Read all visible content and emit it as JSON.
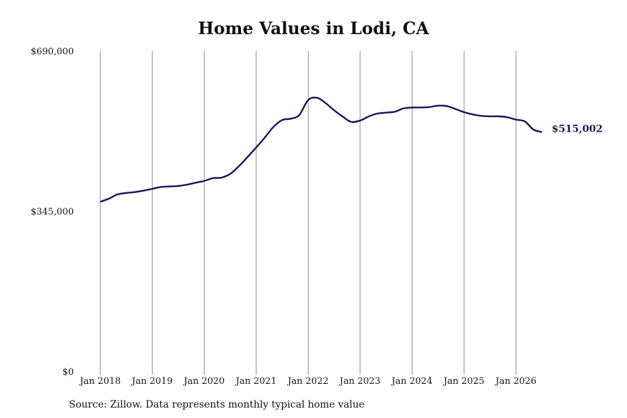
{
  "chart_data": {
    "type": "line",
    "title": "Home Values in Lodi, CA",
    "xlabel": "",
    "ylabel": "",
    "ylim": [
      0,
      690000
    ],
    "y_ticks": [
      {
        "value": 0,
        "label": "$0"
      },
      {
        "value": 345000,
        "label": "$345,000"
      },
      {
        "value": 690000,
        "label": "$690,000"
      }
    ],
    "x_ticks": [
      {
        "value": 2018.0,
        "label": "Jan 2018"
      },
      {
        "value": 2019.0,
        "label": "Jan 2019"
      },
      {
        "value": 2020.0,
        "label": "Jan 2020"
      },
      {
        "value": 2021.0,
        "label": "Jan 2021"
      },
      {
        "value": 2022.0,
        "label": "Jan 2022"
      },
      {
        "value": 2023.0,
        "label": "Jan 2023"
      },
      {
        "value": 2024.0,
        "label": "Jan 2024"
      },
      {
        "value": 2025.0,
        "label": "Jan 2025"
      },
      {
        "value": 2026.0,
        "label": "Jan 2026"
      }
    ],
    "xlim": [
      2018.0,
      2026.5
    ],
    "grid": "vertical",
    "line_color": "#14145a",
    "end_label": "$515,002",
    "series": [
      {
        "x": [
          2018.0,
          2018.17,
          2018.33,
          2018.5,
          2018.67,
          2018.83,
          2019.0,
          2019.17,
          2019.33,
          2019.5,
          2019.67,
          2019.83,
          2020.0,
          2020.17,
          2020.33,
          2020.5,
          2020.67,
          2020.83,
          2021.0,
          2021.17,
          2021.33,
          2021.5,
          2021.67,
          2021.83,
          2022.0,
          2022.17,
          2022.33,
          2022.5,
          2022.67,
          2022.83,
          2023.0,
          2023.17,
          2023.33,
          2023.5,
          2023.67,
          2023.83,
          2024.0,
          2024.17,
          2024.33,
          2024.5,
          2024.67,
          2024.83,
          2025.0,
          2025.17,
          2025.33,
          2025.5,
          2025.67,
          2025.83,
          2026.0,
          2026.17,
          2026.33,
          2026.5
        ],
        "values": [
          365000,
          372000,
          381000,
          384000,
          386000,
          389000,
          393000,
          397000,
          398000,
          399000,
          402000,
          406000,
          410000,
          416000,
          417000,
          425000,
          442000,
          461000,
          482000,
          504000,
          526000,
          541000,
          544000,
          552000,
          584000,
          589000,
          578000,
          562000,
          548000,
          537000,
          540000,
          549000,
          555000,
          557000,
          559000,
          566000,
          568000,
          568000,
          569000,
          572000,
          571000,
          565000,
          558000,
          553000,
          550000,
          549000,
          549000,
          547000,
          542000,
          538000,
          521000,
          515002
        ]
      }
    ]
  },
  "source_note": "Source: Zillow. Data represents monthly typical home value"
}
